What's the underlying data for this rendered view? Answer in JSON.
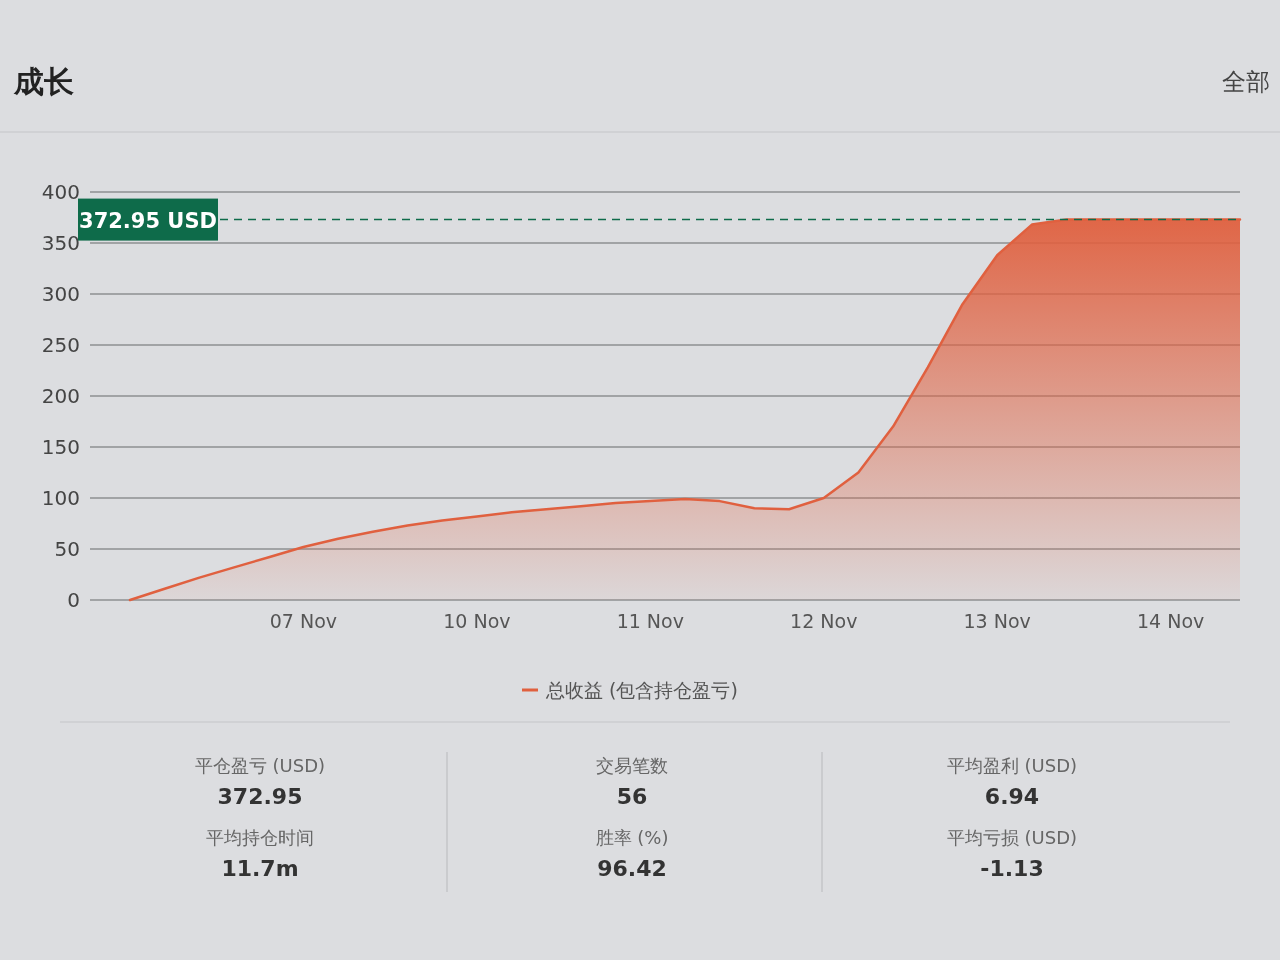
{
  "chart_data": [
    {
      "type": "area",
      "title": "成长",
      "annotations": [
        "全部"
      ],
      "series": [
        {
          "name": "总收益 (包含持仓盈亏)",
          "color": "#e0603f",
          "values": [
            0,
            11,
            22,
            32,
            42,
            52,
            60,
            67,
            73,
            78,
            82,
            86,
            89,
            92,
            95,
            97,
            99,
            97,
            90,
            89,
            100,
            125,
            170,
            228,
            290,
            338,
            368,
            373,
            373,
            373,
            373,
            373,
            373
          ]
        }
      ],
      "categories": [
        null,
        null,
        null,
        null,
        null,
        "07 Nov",
        null,
        null,
        null,
        null,
        "10 Nov",
        null,
        null,
        null,
        null,
        "11 Nov",
        null,
        null,
        null,
        null,
        "12 Nov",
        null,
        null,
        null,
        null,
        "13 Nov",
        null,
        null,
        null,
        null,
        "14 Nov",
        null,
        null
      ],
      "ylim": [
        0,
        400
      ],
      "yticks": [
        0,
        50,
        100,
        150,
        200,
        250,
        300,
        350,
        400
      ],
      "ref_lines": [
        {
          "axis": "y",
          "value": 372.95,
          "label": "372.95 USD",
          "color": "#0e6b4a",
          "line_style": "dashed"
        }
      ],
      "grid": "y",
      "legend": "bottom",
      "line_style": "solid",
      "marker": "none"
    },
    {
      "type": "other",
      "annotations": [
        "平仓盈亏 (USD)",
        "372.95",
        "平均持仓时间",
        "11.7m",
        "交易笔数",
        "56",
        "胜率 (%)",
        "96.42",
        "平均盈利 (USD)",
        "6.94",
        "平均亏损 (USD)",
        "-1.13"
      ]
    }
  ]
}
